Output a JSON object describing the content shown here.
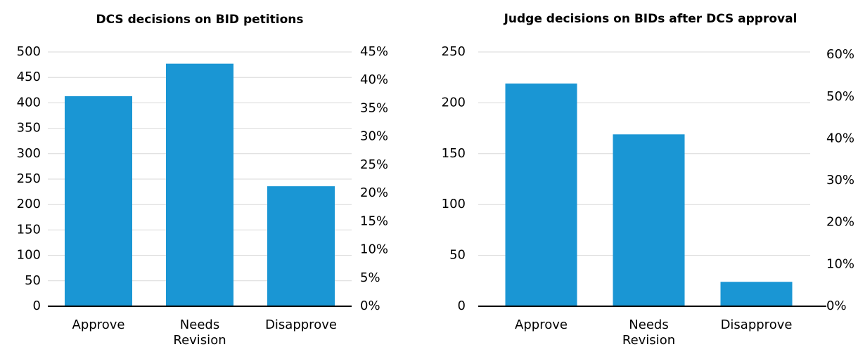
{
  "chart_data": [
    {
      "type": "bar",
      "title": "DCS decisions on BID petitions",
      "categories": [
        "Approve",
        "Needs Revision",
        "Disapprove"
      ],
      "values": [
        413,
        477,
        236
      ],
      "color": "#1a96d4",
      "ylim": [
        0,
        500
      ],
      "yticks": [
        0,
        50,
        100,
        150,
        200,
        250,
        300,
        350,
        400,
        450,
        500
      ],
      "y2lim": [
        0,
        45
      ],
      "y2ticks": [
        {
          "value": 0,
          "label": "0%"
        },
        {
          "value": 5,
          "label": "5%"
        },
        {
          "value": 10,
          "label": "10%"
        },
        {
          "value": 15,
          "label": "15%"
        },
        {
          "value": 20,
          "label": "20%"
        },
        {
          "value": 25,
          "label": "25%"
        },
        {
          "value": 30,
          "label": "30%"
        },
        {
          "value": 35,
          "label": "35%"
        },
        {
          "value": 40,
          "label": "40%"
        },
        {
          "value": 45,
          "label": "45%"
        }
      ],
      "grid": true
    },
    {
      "type": "bar",
      "title": "Judge decisions on BIDs after DCS approval",
      "categories": [
        "Approve",
        "Needs Revision",
        "Disapprove"
      ],
      "values": [
        219,
        169,
        24
      ],
      "color": "#1a96d4",
      "ylim": [
        0,
        250
      ],
      "yticks": [
        0,
        50,
        100,
        150,
        200,
        250
      ],
      "y2lim": [
        0,
        60.7
      ],
      "y2ticks": [
        {
          "value": 0,
          "label": "0%"
        },
        {
          "value": 10,
          "label": "10%"
        },
        {
          "value": 20,
          "label": "20%"
        },
        {
          "value": 30,
          "label": "30%"
        },
        {
          "value": 40,
          "label": "40%"
        },
        {
          "value": 50,
          "label": "50%"
        },
        {
          "value": 60,
          "label": "60%"
        }
      ],
      "grid": true
    }
  ]
}
